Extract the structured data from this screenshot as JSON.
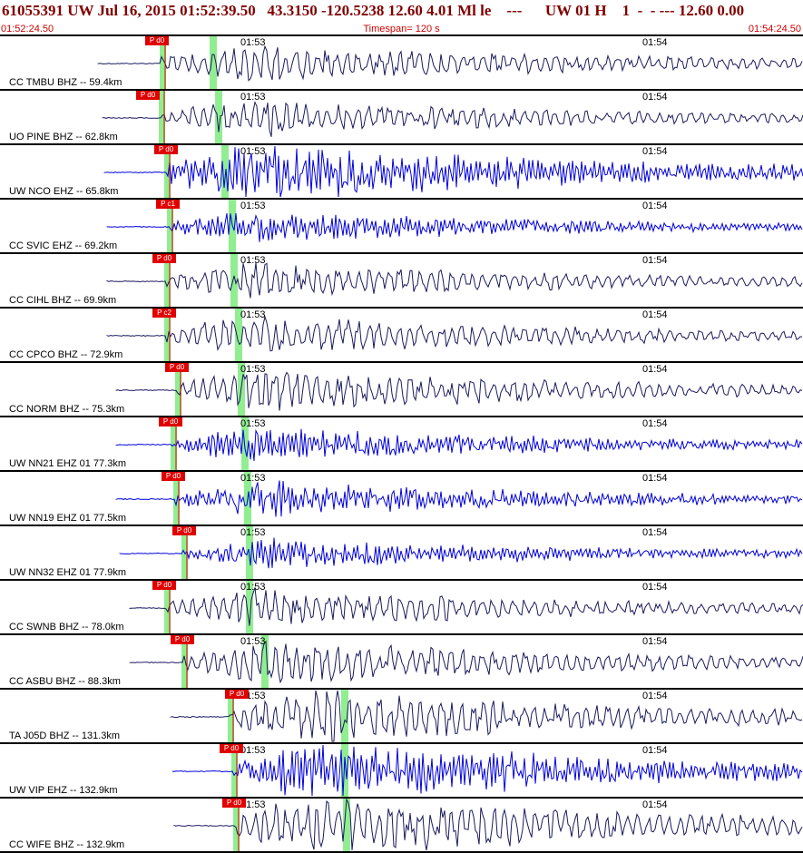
{
  "header": {
    "title": "61055391 UW Jul 16, 2015 01:52:39.50   43.3150 -120.5238 12.60 4.01 Ml le    ---      UW 01 H    1  -  - --- 12.60 0.00",
    "time_start": "01:52:24.50",
    "timespan": "Timespan= 120 s",
    "time_end": "01:54:24.50"
  },
  "tick_labels": [
    "01:53",
    "01:54"
  ],
  "colors": {
    "broadband": "#1a1a5e",
    "shortperiod": "#0000dd",
    "pick": "#e00000",
    "s_window": "#90ee90",
    "label_red": "#cc0000"
  },
  "traces": [
    {
      "label": "CC TMBU BHZ -- 59.4km",
      "pick": "P d0",
      "type": "broadband"
    },
    {
      "label": "UO PINE BHZ -- 62.8km",
      "pick": "P d0",
      "type": "broadband"
    },
    {
      "label": "UW NCO EHZ -- 65.8km",
      "pick": "P d0",
      "type": "shortperiod"
    },
    {
      "label": "CC SVIC EHZ -- 69.2km",
      "pick": "P c1",
      "type": "shortperiod"
    },
    {
      "label": "CC CIHL BHZ -- 69.9km",
      "pick": "P d0",
      "type": "broadband"
    },
    {
      "label": "CC CPCO BHZ -- 72.9km",
      "pick": "P c2",
      "type": "broadband"
    },
    {
      "label": "CC NORM BHZ -- 75.3km",
      "pick": "P d0",
      "type": "broadband"
    },
    {
      "label": "UW NN21 EHZ 01 77.3km",
      "pick": "P d0",
      "type": "shortperiod"
    },
    {
      "label": "UW NN19 EHZ 01 77.5km",
      "pick": "P d0",
      "type": "shortperiod"
    },
    {
      "label": "UW NN32 EHZ 01 77.9km",
      "pick": "P d0",
      "type": "shortperiod"
    },
    {
      "label": "CC SWNB BHZ -- 78.0km",
      "pick": "P d0",
      "type": "broadband"
    },
    {
      "label": "CC ASBU BHZ -- 88.3km",
      "pick": "P d0",
      "type": "broadband"
    },
    {
      "label": "TA J05D BHZ -- 131.3km",
      "pick": "P d0",
      "type": "broadband"
    },
    {
      "label": "UW VIP EHZ -- 132.9km",
      "pick": "P d0",
      "type": "shortperiod"
    },
    {
      "label": "CC WIFE BHZ -- 132.9km",
      "pick": "P d0",
      "type": "broadband"
    }
  ]
}
